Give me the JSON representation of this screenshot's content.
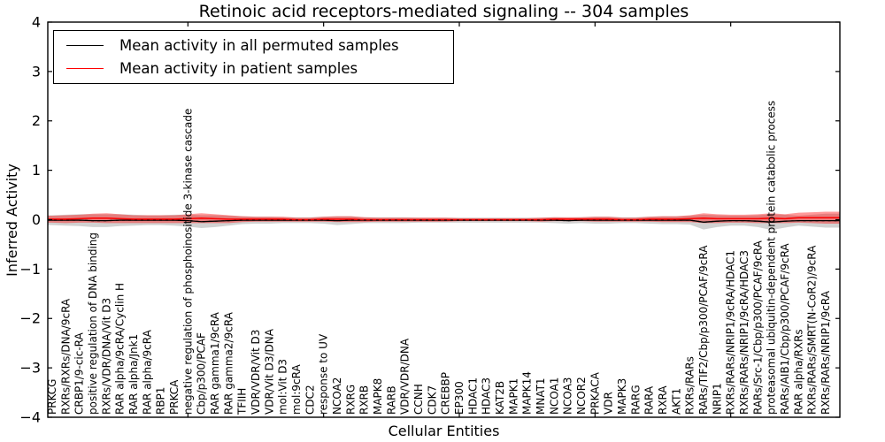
{
  "title": "Retinoic acid receptors-mediated signaling -- 304 samples",
  "legend": {
    "items": [
      {
        "label": "Mean activity in all permuted samples",
        "color": "#000000"
      },
      {
        "label": "Mean activity in patient samples",
        "color": "#ff0000"
      }
    ]
  },
  "axes": {
    "xlabel": "Cellular Entities",
    "ylabel": "Inferred Activity"
  },
  "chart_data": {
    "type": "line",
    "title": "Retinoic acid receptors-mediated signaling -- 304 samples",
    "xlabel": "Cellular Entities",
    "ylabel": "Inferred Activity",
    "ylim": [
      -4,
      4
    ],
    "yticks": [
      4,
      3,
      2,
      1,
      0,
      -1,
      -2,
      -3,
      -4
    ],
    "ytick_labels": [
      "4",
      "3",
      "2",
      "1",
      "0",
      "−1",
      "−2",
      "−3",
      "−4"
    ],
    "grid": false,
    "legend_position": "upper left",
    "top_tick_indices": [
      10,
      20,
      30,
      40,
      50
    ],
    "categories": [
      "PRKCG",
      "RXRs/RXRs/DNA/9cRA",
      "CRBP1/9-cic-RA",
      "positive regulation of DNA binding",
      "RXRs/VDR/DNA/Vit D3",
      "RAR alpha/9cRA/Cyclin H",
      "RAR alpha/Jnk1",
      "RAR alpha/9cRA",
      "RBP1",
      "PRKCA",
      "negative regulation of phosphoinositide 3-kinase cascade",
      "Cbp/p300/PCAF",
      "RAR gamma1/9cRA",
      "RAR gamma2/9cRA",
      "TFIIH",
      "VDR/VDR/Vit D3",
      "VDR/Vit D3/DNA",
      "mol:Vit D3",
      "mol:9cRA",
      "CDC2",
      "response to UV",
      "NCOA2",
      "RXRG",
      "RXRB",
      "MAPK8",
      "RARB",
      "VDR/VDR/DNA",
      "CCNH",
      "CDK7",
      "CREBBP",
      "EP300",
      "HDAC1",
      "HDAC3",
      "KAT2B",
      "MAPK1",
      "MAPK14",
      "MNAT1",
      "NCOA1",
      "NCOA3",
      "NCOR2",
      "PRKACA",
      "VDR",
      "MAPK3",
      "RARG",
      "RARA",
      "RXRA",
      "AKT1",
      "RXRs/RARs",
      "RARs/TIF2/Cbp/p300/PCAF/9cRA",
      "NRIP1",
      "RXRs/RARs/NRIP1/9cRA/HDAC1",
      "RXRs/RARs/NRIP1/9cRA/HDAC3",
      "RARs/Src-1/Cbp/p300/PCAF/9cRA",
      "proteasomal ubiquitin-dependent protein catabolic process",
      "RARs/AIB1/Cbp/p300/PCAF/9cRA",
      "RAR alpha/RXRs",
      "RXRs/RARs/SMRT(N-CoR2)/9cRA",
      "RXRs/RARs/NRIP1/9cRA"
    ],
    "series": [
      {
        "name": "Mean activity in all permuted samples",
        "color": "#000000",
        "band_color": "#999999",
        "band_opacity": 0.45,
        "values": [
          -0.01,
          -0.01,
          -0.01,
          -0.02,
          -0.02,
          -0.01,
          -0.01,
          -0.01,
          -0.01,
          -0.01,
          -0.02,
          -0.04,
          -0.03,
          -0.02,
          -0.01,
          -0.01,
          -0.01,
          -0.01,
          -0.01,
          -0.01,
          -0.01,
          -0.02,
          -0.01,
          -0.01,
          -0.01,
          -0.01,
          -0.01,
          -0.01,
          -0.01,
          -0.01,
          -0.01,
          -0.01,
          -0.01,
          -0.01,
          -0.01,
          -0.01,
          -0.01,
          -0.01,
          -0.02,
          -0.01,
          -0.01,
          -0.01,
          -0.01,
          -0.01,
          -0.01,
          -0.01,
          -0.01,
          -0.01,
          -0.05,
          -0.03,
          -0.02,
          -0.02,
          -0.03,
          -0.05,
          -0.03,
          -0.02,
          -0.02,
          -0.02
        ],
        "band_halfwidth": [
          0.1,
          0.11,
          0.12,
          0.13,
          0.13,
          0.12,
          0.11,
          0.1,
          0.1,
          0.11,
          0.12,
          0.13,
          0.12,
          0.1,
          0.08,
          0.07,
          0.07,
          0.06,
          0.06,
          0.06,
          0.07,
          0.09,
          0.08,
          0.06,
          0.06,
          0.06,
          0.06,
          0.05,
          0.05,
          0.05,
          0.05,
          0.05,
          0.05,
          0.05,
          0.05,
          0.05,
          0.05,
          0.06,
          0.06,
          0.06,
          0.07,
          0.07,
          0.06,
          0.06,
          0.07,
          0.08,
          0.08,
          0.09,
          0.15,
          0.12,
          0.1,
          0.1,
          0.12,
          0.16,
          0.13,
          0.1,
          0.12,
          0.14
        ]
      },
      {
        "name": "Mean activity in patient samples",
        "color": "#ff0000",
        "band_color": "#ff0000",
        "band_opacity": 0.4,
        "values": [
          0.01,
          0.01,
          0.02,
          0.03,
          0.03,
          0.02,
          0.01,
          0.01,
          0.01,
          0.01,
          0.02,
          0.03,
          0.02,
          0.01,
          0.01,
          0.01,
          0.01,
          0.01,
          0.0,
          0.0,
          0.01,
          0.01,
          0.01,
          0.0,
          0.0,
          0.0,
          0.0,
          0.0,
          0.0,
          0.0,
          0.0,
          0.0,
          0.0,
          0.0,
          0.0,
          0.0,
          0.0,
          0.01,
          0.01,
          0.01,
          0.01,
          0.01,
          0.0,
          0.0,
          0.01,
          0.01,
          0.01,
          0.02,
          0.03,
          0.02,
          0.02,
          0.02,
          0.02,
          0.03,
          0.02,
          0.04,
          0.04,
          0.04
        ],
        "band_halfwidth": [
          0.07,
          0.08,
          0.08,
          0.09,
          0.1,
          0.09,
          0.08,
          0.08,
          0.08,
          0.08,
          0.09,
          0.1,
          0.09,
          0.08,
          0.06,
          0.05,
          0.05,
          0.05,
          0.04,
          0.04,
          0.05,
          0.06,
          0.06,
          0.05,
          0.04,
          0.04,
          0.04,
          0.04,
          0.04,
          0.04,
          0.03,
          0.03,
          0.03,
          0.03,
          0.03,
          0.03,
          0.04,
          0.04,
          0.04,
          0.04,
          0.05,
          0.05,
          0.04,
          0.04,
          0.05,
          0.06,
          0.06,
          0.07,
          0.1,
          0.09,
          0.08,
          0.08,
          0.09,
          0.1,
          0.09,
          0.1,
          0.11,
          0.12
        ]
      }
    ]
  }
}
